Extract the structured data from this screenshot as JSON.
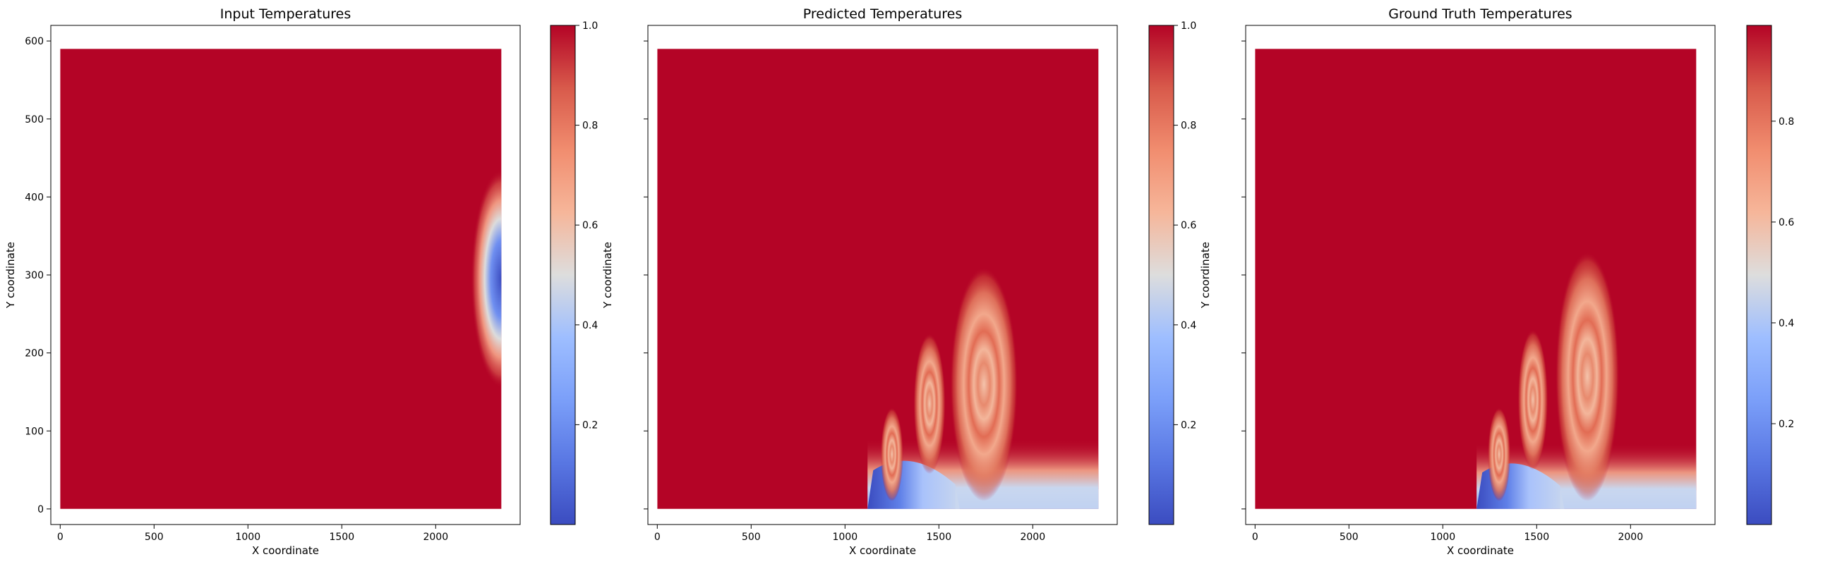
{
  "chart_data": [
    {
      "type": "heatmap",
      "title": "Input Temperatures",
      "xlabel": "X coordinate",
      "ylabel": "Y coordinate",
      "xlim": [
        -50,
        2450
      ],
      "ylim": [
        -20,
        620
      ],
      "x_ticks": [
        0,
        500,
        1000,
        1500,
        2000
      ],
      "y_ticks": [
        0,
        100,
        200,
        300,
        400,
        500,
        600
      ],
      "y_ticklabels_visible": true,
      "domain": {
        "x": [
          0,
          2350
        ],
        "y": [
          0,
          590
        ]
      },
      "colormap": "coolwarm",
      "color_range": [
        0.0,
        1.0
      ],
      "colorbar_ticks": [
        0.2,
        0.4,
        0.6,
        0.8,
        1.0
      ],
      "features": [
        {
          "kind": "cold-blob",
          "center_x": 2350,
          "center_y": 295,
          "radius_x": 540,
          "radius_y": 140,
          "min_value": 0.02
        }
      ]
    },
    {
      "type": "heatmap",
      "title": "Predicted Temperatures",
      "xlabel": "X coordinate",
      "ylabel": "Y coordinate",
      "xlim": [
        -50,
        2450
      ],
      "ylim": [
        -20,
        620
      ],
      "x_ticks": [
        0,
        500,
        1000,
        1500,
        2000
      ],
      "y_ticks": [
        0,
        100,
        200,
        300,
        400,
        500,
        600
      ],
      "y_ticklabels_visible": false,
      "domain": {
        "x": [
          0,
          2350
        ],
        "y": [
          0,
          590
        ]
      },
      "colormap": "coolwarm",
      "color_range": [
        0.0,
        1.0
      ],
      "colorbar_ticks": [
        0.2,
        0.4,
        0.6,
        0.8,
        1.0
      ],
      "features": [
        {
          "kind": "cold-layer",
          "x_start": 1120,
          "x_end": 2350,
          "top_y": 90
        },
        {
          "kind": "vortex",
          "center_x": 1250,
          "center_y": 70,
          "radius_x": 60,
          "radius_y": 60
        },
        {
          "kind": "vortex",
          "center_x": 1450,
          "center_y": 135,
          "radius_x": 85,
          "radius_y": 90
        },
        {
          "kind": "vortex",
          "center_x": 1740,
          "center_y": 160,
          "radius_x": 180,
          "radius_y": 150
        }
      ]
    },
    {
      "type": "heatmap",
      "title": "Ground Truth Temperatures",
      "xlabel": "X coordinate",
      "ylabel": "Y coordinate",
      "xlim": [
        -50,
        2450
      ],
      "ylim": [
        -20,
        620
      ],
      "x_ticks": [
        0,
        500,
        1000,
        1500,
        2000
      ],
      "y_ticks": [
        0,
        100,
        200,
        300,
        400,
        500,
        600
      ],
      "y_ticklabels_visible": false,
      "domain": {
        "x": [
          0,
          2350
        ],
        "y": [
          0,
          590
        ]
      },
      "colormap": "coolwarm",
      "color_range": [
        0.0,
        0.99
      ],
      "colorbar_ticks": [
        0.2,
        0.4,
        0.6,
        0.8
      ],
      "features": [
        {
          "kind": "cold-layer",
          "x_start": 1180,
          "x_end": 2350,
          "top_y": 85
        },
        {
          "kind": "vortex",
          "center_x": 1300,
          "center_y": 70,
          "radius_x": 60,
          "radius_y": 60
        },
        {
          "kind": "vortex",
          "center_x": 1480,
          "center_y": 140,
          "radius_x": 80,
          "radius_y": 90
        },
        {
          "kind": "vortex",
          "center_x": 1770,
          "center_y": 170,
          "radius_x": 170,
          "radius_y": 160
        }
      ]
    }
  ]
}
